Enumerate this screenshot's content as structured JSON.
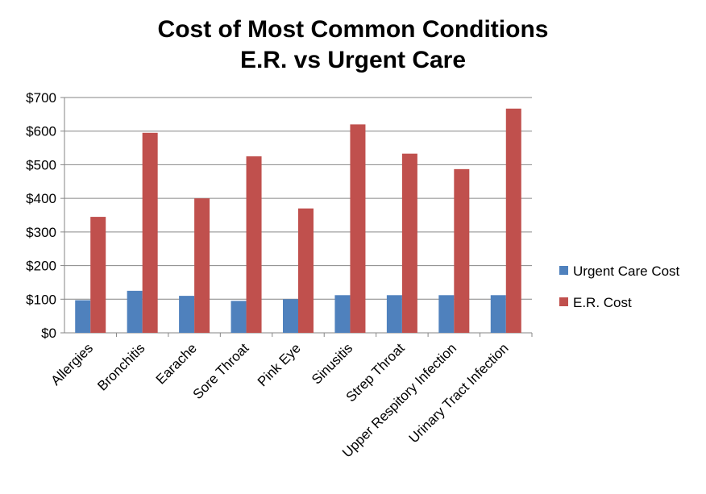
{
  "chart_data": {
    "type": "bar",
    "title": [
      "Cost of Most Common Conditions",
      "E.R. vs Urgent Care"
    ],
    "xlabel": "",
    "ylabel": "",
    "ylim": [
      0,
      700
    ],
    "yticks": [
      0,
      100,
      200,
      300,
      400,
      500,
      600,
      700
    ],
    "ytick_labels": [
      "$0",
      "$100",
      "$200",
      "$300",
      "$400",
      "$500",
      "$600",
      "$700"
    ],
    "categories": [
      "Allergies",
      "Bronchitis",
      "Earache",
      "Sore Throat",
      "Pink Eye",
      "Sinusitis",
      "Strep Throat",
      "Upper Respitory Infection",
      "Urinary Tract Infection"
    ],
    "series": [
      {
        "name": "Urgent Care Cost",
        "color": "#4F81BD",
        "values": [
          97,
          125,
          110,
          95,
          100,
          112,
          112,
          112,
          112
        ]
      },
      {
        "name": "E.R. Cost",
        "color": "#C0504D",
        "values": [
          345,
          595,
          400,
          525,
          370,
          620,
          533,
          487,
          667
        ]
      }
    ],
    "grid": true,
    "legend_position": "right"
  }
}
